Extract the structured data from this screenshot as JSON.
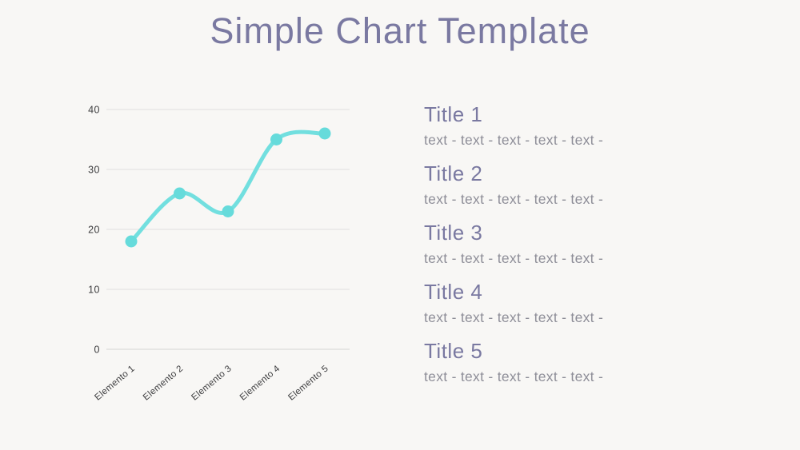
{
  "slide": {
    "title": "Simple Chart Template"
  },
  "colors": {
    "background": "#f8f7f5",
    "title_text": "#7a79a1",
    "body_text": "#8e8e98",
    "axis_text": "#3d3d3f",
    "gridline": "#e4e4e3",
    "zero_line": "#dcdcdb",
    "line": "#72dfdf",
    "point": "#66dbdb"
  },
  "chart_data": {
    "type": "line",
    "title": "",
    "xlabel": "",
    "ylabel": "",
    "categories": [
      "Elemento 1",
      "Elemento 2",
      "Elemento 3",
      "Elemento 4",
      "Elemento 5"
    ],
    "values": [
      18,
      26,
      23,
      35,
      36
    ],
    "yticks": [
      0,
      10,
      20,
      30,
      40
    ],
    "ylim": [
      0,
      40
    ],
    "grid": true,
    "legend_position": "none"
  },
  "sections": [
    {
      "title": "Title 1",
      "text": "text - text - text - text - text -"
    },
    {
      "title": "Title 2",
      "text": "text - text - text - text - text -"
    },
    {
      "title": "Title 3",
      "text": "text - text - text - text - text -"
    },
    {
      "title": "Title 4",
      "text": "text - text - text - text - text -"
    },
    {
      "title": "Title 5",
      "text": "text - text - text - text - text -"
    }
  ]
}
